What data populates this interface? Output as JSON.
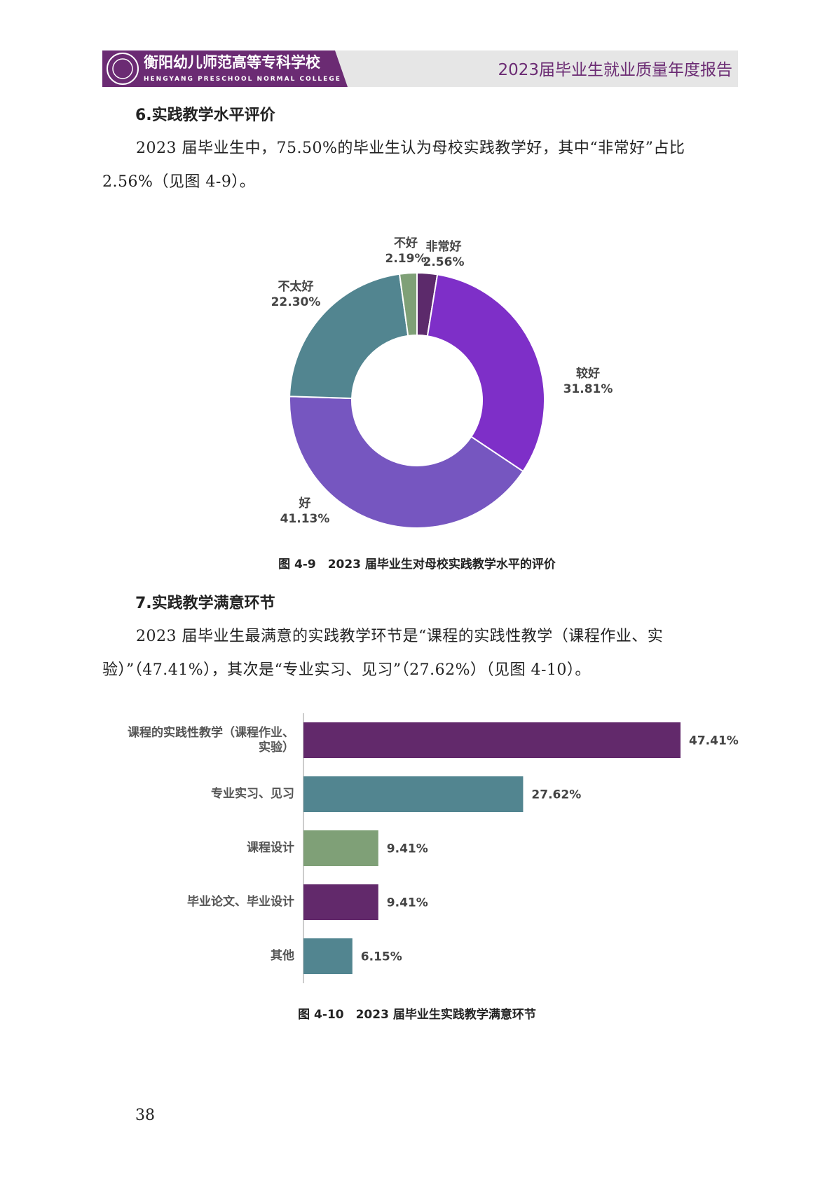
{
  "header": {
    "school_name": "衡阳幼儿师范高等专科学校",
    "school_name_en": "HENGYANG PRESCHOOL NORMAL COLLEGE",
    "report_title": "2023届毕业生就业质量年度报告"
  },
  "sections": [
    {
      "heading": "6.实践教学水平评价",
      "paragraph": "2023 届毕业生中，75.50%的毕业生认为母校实践教学好，其中“非常好”占比 2.56%（见图 4-9）。",
      "caption": "图 4-9　2023 届毕业生对母校实践教学水平的评价"
    },
    {
      "heading": "7.实践教学满意环节",
      "paragraph": "2023 届毕业生最满意的实践教学环节是“课程的实践性教学（课程作业、实验）”（47.41%），其次是“专业实习、见习”（27.62%）（见图 4-10）。",
      "caption": "图 4-10　2023 届毕业生实践教学满意环节"
    }
  ],
  "chart_data": [
    {
      "type": "donut",
      "categories": [
        "非常好",
        "较好",
        "好",
        "不太好",
        "不好"
      ],
      "values": [
        2.56,
        31.81,
        41.13,
        22.3,
        2.19
      ],
      "value_labels": [
        "2.56%",
        "31.81%",
        "41.13%",
        "22.30%",
        "2.19%"
      ],
      "colors": [
        "#5c2a6b",
        "#7e2fc8",
        "#7656c0",
        "#528590",
        "#7fa077"
      ]
    },
    {
      "type": "hbar",
      "categories": [
        "课程的实践性教学（课程作业、实验）",
        "专业实习、见习",
        "课程设计",
        "毕业论文、毕业设计",
        "其他"
      ],
      "values": [
        47.41,
        27.62,
        9.41,
        9.41,
        6.15
      ],
      "value_labels": [
        "47.41%",
        "27.62%",
        "9.41%",
        "9.41%",
        "6.15%"
      ],
      "colors": [
        "#62296b",
        "#528590",
        "#7fa077",
        "#62296b",
        "#528590"
      ]
    }
  ],
  "page_number": "38"
}
